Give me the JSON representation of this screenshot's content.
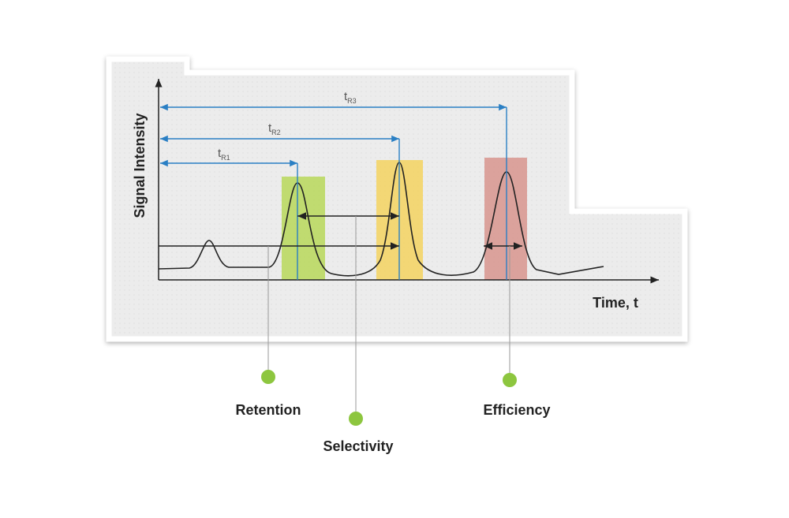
{
  "axes": {
    "y_label": "Signal Intensity",
    "x_label": "Time, t"
  },
  "retention_times": [
    {
      "symbol": "t",
      "subscript": "R1"
    },
    {
      "symbol": "t",
      "subscript": "R2"
    },
    {
      "symbol": "t",
      "subscript": "R3"
    }
  ],
  "callouts": [
    {
      "label": "Retention"
    },
    {
      "label": "Selectivity"
    },
    {
      "label": "Efficiency"
    }
  ]
}
